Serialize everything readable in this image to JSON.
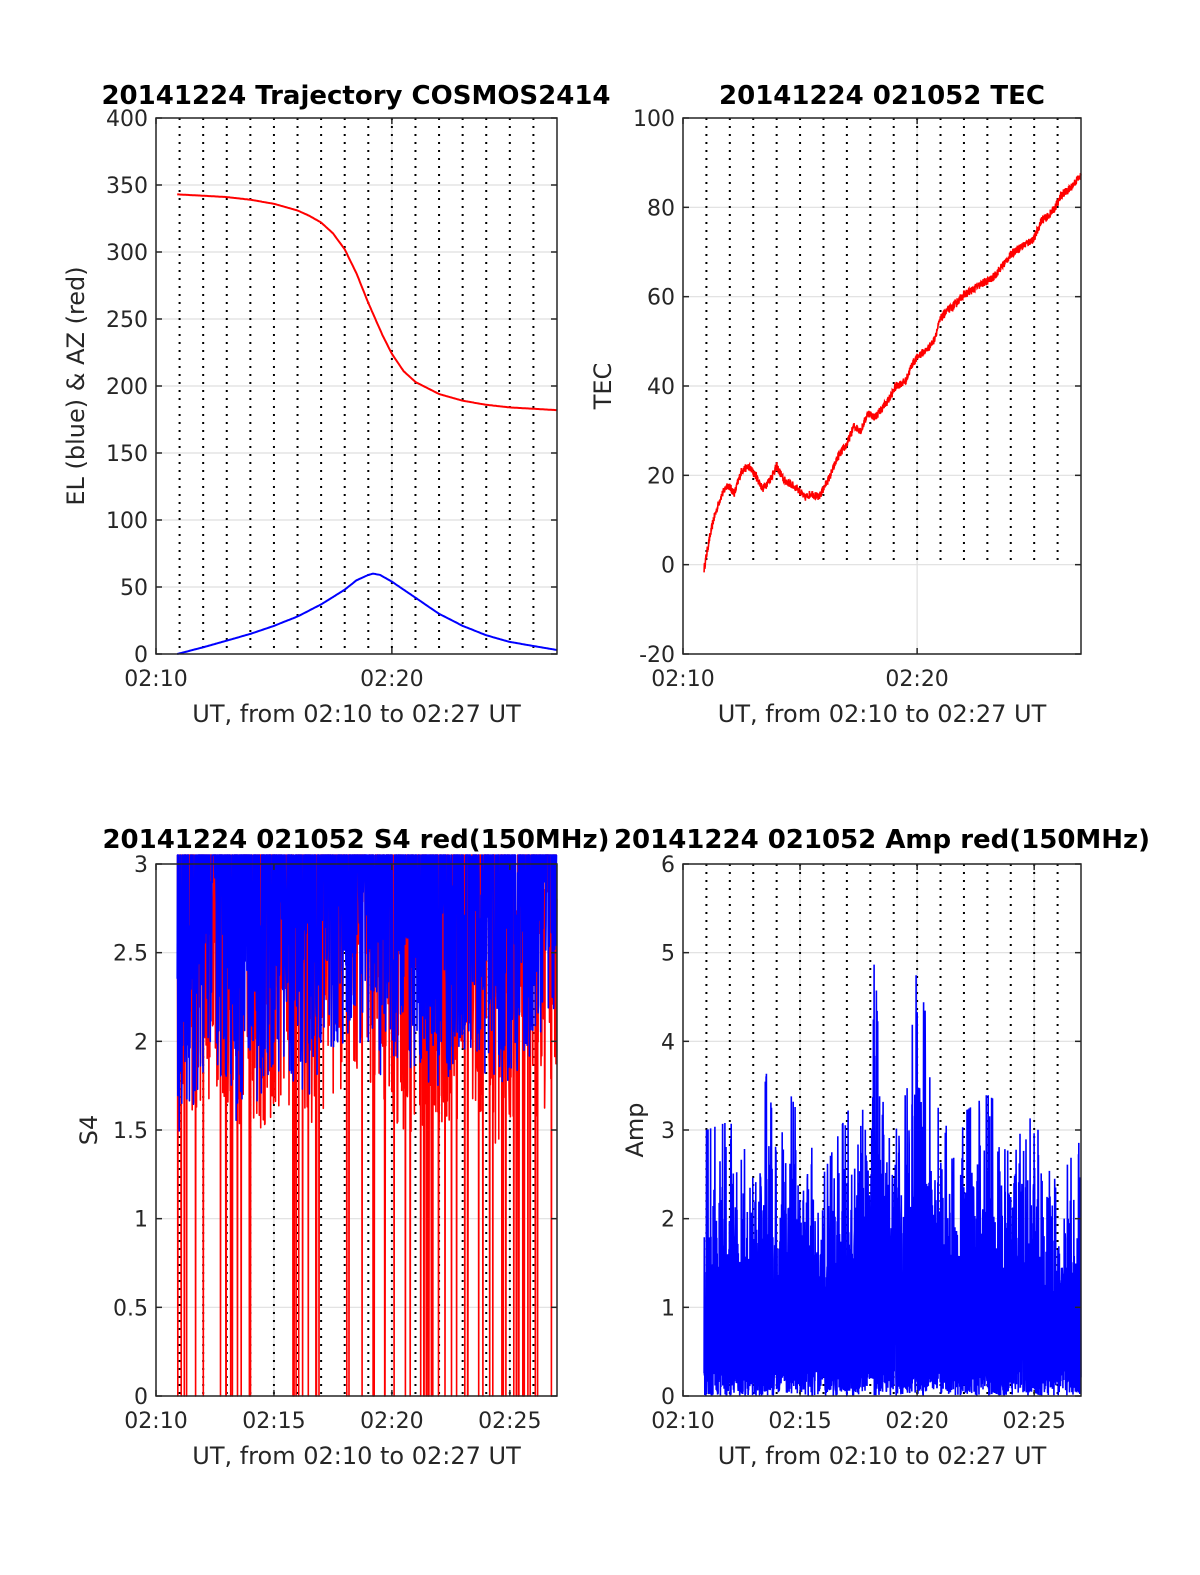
{
  "colors": {
    "red": "#ff0000",
    "blue": "#0000ff",
    "axis": "#262626",
    "grid": "#dfdfdf",
    "vline": "#000000"
  },
  "charts": [
    {
      "title": "20141224 Trajectory COSMOS2414",
      "xlabel": "UT, from 02:10 to 02:27 UT",
      "ylabel": "EL (blue) & AZ (red)",
      "yticks": [
        "0",
        "50",
        "100",
        "150",
        "200",
        "250",
        "300",
        "350",
        "400"
      ],
      "xticks": [
        "02:10",
        "02:20"
      ]
    },
    {
      "title": "20141224 021052 TEC",
      "xlabel": "UT, from 02:10 to 02:27 UT",
      "ylabel": "TEC",
      "yticks": [
        "-20",
        "0",
        "20",
        "40",
        "60",
        "80",
        "100"
      ],
      "xticks": [
        "02:10",
        "02:20"
      ]
    },
    {
      "title": "20141224 021052 S4 red(150MHz)",
      "xlabel": "UT, from 02:10 to 02:27 UT",
      "ylabel": "S4",
      "yticks": [
        "0",
        "0.5",
        "1",
        "1.5",
        "2",
        "2.5",
        "3"
      ],
      "xticks": [
        "02:10",
        "02:15",
        "02:20",
        "02:25"
      ]
    },
    {
      "title": "20141224 021052 Amp red(150MHz)",
      "xlabel": "UT, from 02:10 to 02:27 UT",
      "ylabel": "Amp",
      "yticks": [
        "0",
        "1",
        "2",
        "3",
        "4",
        "5",
        "6"
      ],
      "xticks": [
        "02:10",
        "02:15",
        "02:20",
        "02:25"
      ]
    }
  ],
  "chart_data": [
    {
      "type": "line",
      "title": "20141224 Trajectory COSMOS2414",
      "xlabel": "UT, from 02:10 to 02:27 UT",
      "ylabel": "EL (blue) & AZ (red)",
      "x_unit": "minutes after 02:10 UT",
      "xlim": [
        0,
        17
      ],
      "ylim": [
        0,
        400
      ],
      "x_tick_values": [
        0,
        10
      ],
      "x_tick_labels": [
        "02:10",
        "02:20"
      ],
      "y_tick_values": [
        0,
        50,
        100,
        150,
        200,
        250,
        300,
        350,
        400
      ],
      "grid": true,
      "series": [
        {
          "name": "AZ (red)",
          "color": "#ff0000",
          "x": [
            0.9,
            2,
            3,
            4,
            5,
            6,
            6.5,
            7,
            7.5,
            8,
            8.5,
            9,
            9.3,
            9.6,
            10,
            10.5,
            11,
            12,
            13,
            14,
            15,
            16,
            17
          ],
          "y": [
            343,
            342,
            341,
            339,
            336,
            331,
            327,
            322,
            314,
            302,
            284,
            262,
            250,
            238,
            224,
            211,
            203,
            194,
            189,
            186,
            184,
            183,
            182
          ]
        },
        {
          "name": "EL (blue)",
          "color": "#0000ff",
          "x": [
            0.9,
            2,
            3,
            4,
            5,
            6,
            7,
            8,
            8.5,
            9,
            9.2,
            9.5,
            10,
            11,
            12,
            13,
            14,
            15,
            16,
            17
          ],
          "y": [
            0,
            5,
            10,
            15,
            21,
            28,
            37,
            48,
            55,
            59,
            60,
            59,
            54,
            42,
            30,
            21,
            14,
            9,
            6,
            3
          ]
        }
      ]
    },
    {
      "type": "line",
      "title": "20141224 021052 TEC",
      "xlabel": "UT, from 02:10 to 02:27 UT",
      "ylabel": "TEC",
      "x_unit": "minutes after 02:10 UT",
      "xlim": [
        0,
        17
      ],
      "ylim": [
        -20,
        100
      ],
      "x_tick_values": [
        0,
        10
      ],
      "x_tick_labels": [
        "02:10",
        "02:20"
      ],
      "y_tick_values": [
        -20,
        0,
        20,
        40,
        60,
        80,
        100
      ],
      "grid": true,
      "series": [
        {
          "name": "TEC",
          "color": "#ff0000",
          "x": [
            0.9,
            1.1,
            1.3,
            1.6,
            1.9,
            2.2,
            2.5,
            2.8,
            3.1,
            3.4,
            3.7,
            4.0,
            4.3,
            4.6,
            4.9,
            5.2,
            5.5,
            5.8,
            6.0,
            6.3,
            6.6,
            7.0,
            7.3,
            7.6,
            7.9,
            8.2,
            8.5,
            8.8,
            9.1,
            9.5,
            9.8,
            10.1,
            10.4,
            10.7,
            11.0,
            11.3,
            11.6,
            11.9,
            12.2,
            12.5,
            12.8,
            13.2,
            13.5,
            13.8,
            14.1,
            14.4,
            14.7,
            15.0,
            15.3,
            15.6,
            15.9,
            16.2,
            16.5,
            16.8,
            17.0
          ],
          "y": [
            -1,
            5,
            10,
            15,
            18,
            16,
            21,
            22,
            20,
            17,
            19,
            22,
            19,
            18,
            17,
            15,
            16,
            15,
            17,
            20,
            24,
            27,
            31,
            30,
            34,
            33,
            35,
            37,
            40,
            41,
            45,
            47,
            48,
            50,
            55,
            57,
            58,
            60,
            61,
            62,
            63,
            64,
            66,
            68,
            70,
            71,
            72,
            73,
            77,
            78,
            80,
            83,
            84,
            86,
            87
          ]
        }
      ]
    },
    {
      "type": "line",
      "title": "20141224 021052 S4 red(150MHz)",
      "xlabel": "UT, from 02:10 to 02:27 UT",
      "ylabel": "S4",
      "x_unit": "minutes after 02:10 UT",
      "xlim": [
        0,
        17
      ],
      "ylim": [
        0,
        3
      ],
      "x_tick_values": [
        0,
        5,
        10,
        15
      ],
      "x_tick_labels": [
        "02:10",
        "02:15",
        "02:20",
        "02:25"
      ],
      "y_tick_values": [
        0,
        0.5,
        1,
        1.5,
        2,
        2.5,
        3
      ],
      "grid": true,
      "series": [
        {
          "name": "S4 (red)",
          "color": "#ff0000",
          "x": [
            0.9,
            1.5,
            2.5,
            3.5,
            4.5,
            5.5,
            6.5,
            7.5,
            8.5,
            9.5,
            10.5,
            11.5,
            12.5,
            13.5,
            14.5,
            15.5,
            16.5,
            17.0
          ],
          "y": [
            1.8,
            1.6,
            1.7,
            1.4,
            1.5,
            1.6,
            1.5,
            1.7,
            1.8,
            1.6,
            1.5,
            1.4,
            1.5,
            1.6,
            1.4,
            1.5,
            1.6,
            1.9
          ]
        },
        {
          "name": "S4 (blue)",
          "color": "#0000ff",
          "x": [
            0.9,
            1.5,
            2.5,
            3.5,
            4.5,
            5.5,
            6.5,
            7.5,
            8.5,
            9.5,
            10.5,
            11.5,
            12.5,
            13.5,
            14.5,
            15.5,
            16.5,
            17.0
          ],
          "y": [
            1.4,
            1.6,
            1.8,
            1.5,
            1.7,
            1.8,
            1.7,
            1.9,
            2.0,
            1.8,
            1.9,
            1.7,
            1.8,
            1.9,
            1.7,
            1.8,
            2.0,
            2.2
          ]
        }
      ]
    },
    {
      "type": "line",
      "title": "20141224 021052 Amp red(150MHz)",
      "xlabel": "UT, from 02:10 to 02:27 UT",
      "ylabel": "Amp",
      "x_unit": "minutes after 02:10 UT",
      "xlim": [
        0,
        17
      ],
      "ylim": [
        0,
        6
      ],
      "x_tick_values": [
        0,
        5,
        10,
        15
      ],
      "x_tick_labels": [
        "02:10",
        "02:15",
        "02:20",
        "02:25"
      ],
      "y_tick_values": [
        0,
        1,
        2,
        3,
        4,
        5,
        6
      ],
      "grid": true,
      "series": [
        {
          "name": "Amp",
          "color": "#0000ff",
          "x": [
            0.9,
            1.0,
            2.0,
            3.0,
            3.6,
            4.0,
            4.6,
            5.0,
            6.0,
            7.0,
            7.8,
            8.2,
            9.0,
            9.6,
            10.0,
            10.3,
            10.6,
            11.0,
            12.0,
            13.0,
            13.5,
            14.0,
            15.0,
            15.5,
            16.0,
            17.0
          ],
          "y": [
            2.5,
            3.0,
            3.1,
            2.6,
            3.7,
            2.7,
            3.4,
            3.1,
            2.5,
            3.2,
            3.5,
            5.0,
            2.9,
            3.5,
            4.9,
            4.4,
            4.0,
            3.0,
            3.2,
            3.4,
            3.3,
            2.8,
            3.2,
            2.6,
            2.4,
            2.9
          ]
        }
      ]
    }
  ]
}
